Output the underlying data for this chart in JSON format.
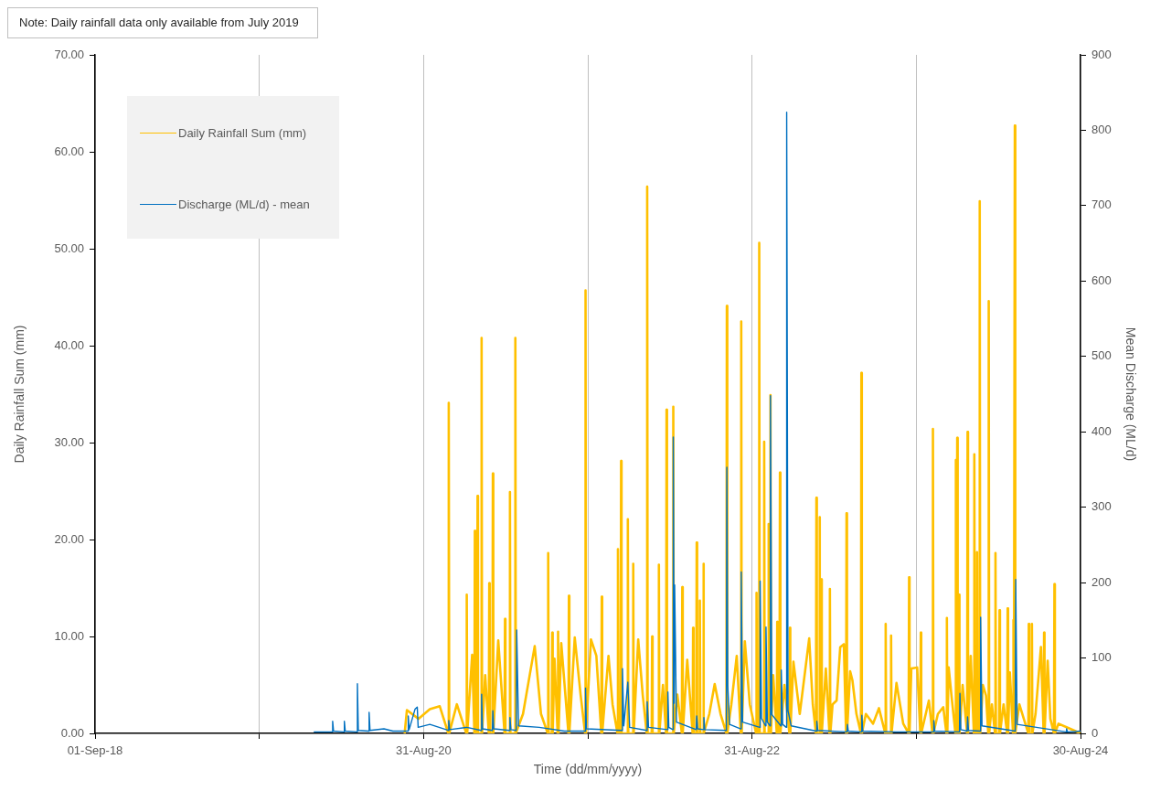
{
  "chart_data": {
    "type": "line",
    "xlabel": "Time (dd/mm/yyyy)",
    "ylabel": "Daily Rainfall Sum (mm)",
    "y2label": "Mean Discharge (ML/d)",
    "annotations": [
      "Note: Daily rainfall data only available from July 2019"
    ],
    "xlim": [
      "2018-09-01",
      "2024-08-30"
    ],
    "xticks": [
      {
        "value": "2018-09-01",
        "label": "01-Sep-18"
      },
      {
        "value": "2019-08-31",
        "label": null
      },
      {
        "value": "2020-08-31",
        "label": "31-Aug-20"
      },
      {
        "value": "2021-08-31",
        "label": null
      },
      {
        "value": "2022-08-31",
        "label": "31-Aug-22"
      },
      {
        "value": "2023-08-31",
        "label": null
      },
      {
        "value": "2024-08-30",
        "label": "30-Aug-24"
      }
    ],
    "ylim": [
      0,
      70
    ],
    "yticks": [
      {
        "value": 0,
        "label": "0.00"
      },
      {
        "value": 10,
        "label": "10.00"
      },
      {
        "value": 20,
        "label": "20.00"
      },
      {
        "value": 30,
        "label": "30.00"
      },
      {
        "value": 40,
        "label": "40.00"
      },
      {
        "value": 50,
        "label": "50.00"
      },
      {
        "value": 60,
        "label": "60.00"
      },
      {
        "value": 70,
        "label": "70.00"
      }
    ],
    "y2lim": [
      0,
      900
    ],
    "y2ticks": [
      0,
      100,
      200,
      300,
      400,
      500,
      600,
      700,
      800,
      900
    ],
    "grid": "x",
    "legend": "top left",
    "marker": "none",
    "series": [
      {
        "name": "Daily Rainfall Sum (mm)",
        "color": "#ffc000",
        "x": [
          "2020-07-20",
          "2020-07-25",
          "2020-08-20",
          "2020-09-14",
          "2020-10-06",
          "2020-10-25",
          "2020-10-26",
          "2020-10-27",
          "2020-11-13",
          "2020-12-04",
          "2020-12-05",
          "2020-12-06",
          "2020-12-17",
          "2020-12-22",
          "2020-12-23",
          "2020-12-24",
          "2020-12-28",
          "2020-12-29",
          "2020-12-30",
          "2021-01-06",
          "2021-01-07",
          "2021-01-08",
          "2021-01-15",
          "2021-01-23",
          "2021-01-24",
          "2021-01-25",
          "2021-01-31",
          "2021-02-01",
          "2021-02-02",
          "2021-02-13",
          "2021-02-27",
          "2021-02-28",
          "2021-03-01",
          "2021-03-10",
          "2021-03-11",
          "2021-03-12",
          "2021-03-22",
          "2021-03-23",
          "2021-03-24",
          "2021-04-09",
          "2021-05-05",
          "2021-05-19",
          "2021-06-03",
          "2021-06-04",
          "2021-06-05",
          "2021-06-12",
          "2021-06-13",
          "2021-06-14",
          "2021-06-18",
          "2021-06-25",
          "2021-06-26",
          "2021-06-27",
          "2021-07-03",
          "2021-07-19",
          "2021-07-20",
          "2021-07-21",
          "2021-08-02",
          "2021-08-15",
          "2021-08-25",
          "2021-08-26",
          "2021-08-27",
          "2021-09-07",
          "2021-09-19",
          "2021-09-30",
          "2021-10-01",
          "2021-10-02",
          "2021-10-16",
          "2021-10-25",
          "2021-11-05",
          "2021-11-06",
          "2021-11-07",
          "2021-11-12",
          "2021-11-13",
          "2021-11-14",
          "2021-11-27",
          "2021-11-28",
          "2021-11-29",
          "2021-12-09",
          "2021-12-10",
          "2021-12-11",
          "2021-12-21",
          "2021-12-31",
          "2022-01-09",
          "2022-01-10",
          "2022-01-11",
          "2022-01-20",
          "2022-01-21",
          "2022-01-22",
          "2022-02-04",
          "2022-02-05",
          "2022-02-06",
          "2022-02-14",
          "2022-02-21",
          "2022-02-22",
          "2022-02-23",
          "2022-03-08",
          "2022-03-09",
          "2022-03-10",
          "2022-03-18",
          "2022-03-28",
          "2022-03-29",
          "2022-03-30",
          "2022-04-09",
          "2022-04-21",
          "2022-04-22",
          "2022-04-23",
          "2022-04-29",
          "2022-04-30",
          "2022-05-01",
          "2022-05-06",
          "2022-05-07",
          "2022-05-08",
          "2022-05-14",
          "2022-05-15",
          "2022-05-16",
          "2022-05-28",
          "2022-06-09",
          "2022-06-22",
          "2022-07-05",
          "2022-07-06",
          "2022-07-07",
          "2022-07-16",
          "2022-07-28",
          "2022-08-06",
          "2022-08-07",
          "2022-08-08",
          "2022-08-15",
          "2022-08-26",
          "2022-09-09",
          "2022-09-10",
          "2022-09-11",
          "2022-09-15",
          "2022-09-16",
          "2022-09-17",
          "2022-09-26",
          "2022-09-27",
          "2022-09-28",
          "2022-10-06",
          "2022-10-07",
          "2022-10-08",
          "2022-10-10",
          "2022-10-11",
          "2022-10-12",
          "2022-10-17",
          "2022-10-25",
          "2022-10-26",
          "2022-10-27",
          "2022-10-31",
          "2022-11-01",
          "2022-11-02",
          "2022-11-11",
          "2022-11-22",
          "2022-11-23",
          "2022-11-24",
          "2022-12-01",
          "2022-12-15",
          "2023-01-05",
          "2023-01-13",
          "2023-01-20",
          "2023-01-21",
          "2023-01-22",
          "2023-01-27",
          "2023-01-28",
          "2023-01-29",
          "2023-01-31",
          "2023-02-01",
          "2023-02-02",
          "2023-02-11",
          "2023-02-19",
          "2023-02-20",
          "2023-02-21",
          "2023-02-26",
          "2023-03-07",
          "2023-03-15",
          "2023-03-23",
          "2023-03-28",
          "2023-03-29",
          "2023-03-30",
          "2023-04-06",
          "2023-04-11",
          "2023-04-20",
          "2023-04-30",
          "2023-05-01",
          "2023-05-02",
          "2023-05-11",
          "2023-05-27",
          "2023-06-09",
          "2023-06-23",
          "2023-06-24",
          "2023-06-25",
          "2023-07-05",
          "2023-07-06",
          "2023-07-07",
          "2023-07-18",
          "2023-08-02",
          "2023-08-14",
          "2023-08-15",
          "2023-08-16",
          "2023-08-20",
          "2023-09-02",
          "2023-09-09",
          "2023-09-10",
          "2023-09-11",
          "2023-09-28",
          "2023-10-06",
          "2023-10-07",
          "2023-10-08",
          "2023-10-18",
          "2023-10-30",
          "2023-11-06",
          "2023-11-07",
          "2023-11-08",
          "2023-11-11",
          "2023-11-17",
          "2023-11-26",
          "2023-11-27",
          "2023-11-28",
          "2023-11-29",
          "2023-11-30",
          "2023-12-01",
          "2023-12-03",
          "2023-12-04",
          "2023-12-05",
          "2023-12-12",
          "2023-12-22",
          "2023-12-23",
          "2023-12-24",
          "2023-12-30",
          "2024-01-06",
          "2024-01-07",
          "2024-01-08",
          "2024-01-12",
          "2024-01-13",
          "2024-01-14",
          "2024-01-18",
          "2024-01-19",
          "2024-01-20",
          "2024-01-26",
          "2024-02-02",
          "2024-02-07",
          "2024-02-08",
          "2024-02-09",
          "2024-02-15",
          "2024-02-22",
          "2024-02-23",
          "2024-02-24",
          "2024-03-02",
          "2024-03-03",
          "2024-03-04",
          "2024-03-12",
          "2024-03-20",
          "2024-03-21",
          "2024-03-22",
          "2024-03-26",
          "2024-04-02",
          "2024-04-03",
          "2024-04-04",
          "2024-04-05",
          "2024-04-06",
          "2024-04-07",
          "2024-04-16",
          "2024-04-26",
          "2024-05-06",
          "2024-05-07",
          "2024-05-08",
          "2024-05-13",
          "2024-05-14",
          "2024-05-15",
          "2024-05-22",
          "2024-06-03",
          "2024-06-09",
          "2024-06-10",
          "2024-06-11",
          "2024-06-18",
          "2024-06-24",
          "2024-07-02",
          "2024-07-03",
          "2024-07-04",
          "2024-07-12",
          "2024-08-06",
          "2024-08-30"
        ],
        "values": [
          0,
          2.4,
          1.5,
          2.5,
          2.8,
          0,
          34.1,
          0,
          3.0,
          0,
          14.3,
          0,
          8.1,
          0,
          20.9,
          0,
          0,
          24.5,
          0,
          0,
          40.8,
          0,
          6,
          0,
          15.5,
          0,
          0,
          26.8,
          0,
          9.6,
          0,
          11.8,
          0,
          0,
          24.9,
          0,
          0,
          40.8,
          0,
          2,
          9.0,
          2,
          0,
          18.6,
          0,
          0,
          10.4,
          0,
          7.7,
          0,
          10.5,
          0,
          9.3,
          0,
          14.2,
          0,
          9.9,
          4,
          0,
          45.7,
          0,
          9.7,
          8.0,
          0,
          14.1,
          0,
          8.0,
          3,
          0,
          19.0,
          0,
          0,
          28.1,
          0,
          0,
          22.1,
          0,
          0,
          17.5,
          0,
          9.7,
          4,
          0,
          56.4,
          0,
          0,
          10.0,
          0,
          0,
          17.4,
          0,
          5,
          0,
          33.4,
          0,
          0,
          33.7,
          0,
          4,
          0,
          15.1,
          0,
          7.6,
          0,
          10.9,
          0,
          0,
          19.7,
          0,
          0,
          13.7,
          0,
          0,
          17.5,
          0,
          2,
          5.1,
          2,
          0,
          44.1,
          0,
          3,
          8.0,
          0,
          42.5,
          0,
          9.5,
          3,
          0,
          14.5,
          0,
          0,
          50.6,
          0,
          0,
          30.1,
          0,
          0,
          21.6,
          0,
          0,
          34.9,
          0,
          6,
          0,
          11.5,
          0,
          0,
          26.9,
          0,
          5,
          0,
          10.9,
          0,
          7.4,
          2,
          9.8,
          3,
          0,
          24.3,
          0,
          0,
          22.3,
          0,
          0,
          15.9,
          0,
          6.7,
          0,
          14.9,
          0,
          3,
          3.4,
          8.9,
          9.2,
          0,
          22.7,
          0,
          6.4,
          5.5,
          2,
          0,
          37.2,
          0,
          2,
          1,
          2.6,
          0,
          11.3,
          0,
          0,
          10.1,
          0,
          5.2,
          1,
          0,
          16.1,
          0,
          6.7,
          6.8,
          0,
          10.4,
          0,
          3.4,
          0,
          31.4,
          0,
          2,
          2.7,
          0,
          11.9,
          0,
          6.8,
          4,
          0,
          28.2,
          0,
          0,
          30.5,
          0,
          0,
          14.3,
          0,
          5,
          0,
          31.1,
          0,
          8,
          0,
          28.8,
          0,
          0,
          18.7,
          0,
          0,
          54.9,
          0,
          5,
          3.9,
          0,
          44.6,
          0,
          3,
          0,
          18.6,
          0,
          0,
          12.7,
          0,
          3,
          0,
          12.9,
          0,
          6.3,
          0,
          11.7,
          0,
          0,
          62.7,
          0,
          3,
          1.5,
          0,
          11.3,
          0,
          0,
          11.3,
          0,
          2,
          8.9,
          0,
          10.4,
          0,
          7.5,
          1.5,
          0,
          15.4,
          0,
          1,
          0.5,
          0
        ]
      },
      {
        "name": "Discharge (ML/d) - mean",
        "color": "#0070c0",
        "axis": "y2",
        "x": [
          "2019-12-31",
          "2020-02-10",
          "2020-02-11",
          "2020-02-13",
          "2020-03-07",
          "2020-03-08",
          "2020-03-10",
          "2020-04-05",
          "2020-04-06",
          "2020-04-08",
          "2020-05-01",
          "2020-05-02",
          "2020-05-04",
          "2020-06-04",
          "2020-06-24",
          "2020-07-27",
          "2020-07-28",
          "2020-07-30",
          "2020-08-12",
          "2020-08-17",
          "2020-08-19",
          "2020-09-14",
          "2020-10-25",
          "2020-10-26",
          "2020-10-28",
          "2020-12-05",
          "2021-01-06",
          "2021-01-07",
          "2021-01-09",
          "2021-01-31",
          "2021-02-01",
          "2021-02-03",
          "2021-03-10",
          "2021-03-11",
          "2021-03-13",
          "2021-03-25",
          "2021-03-26",
          "2021-03-30",
          "2021-05-15",
          "2021-07-10",
          "2021-08-25",
          "2021-08-26",
          "2021-08-28",
          "2021-11-15",
          "2021-11-16",
          "2021-11-19",
          "2021-11-28",
          "2021-12-02",
          "2022-01-09",
          "2022-01-10",
          "2022-01-13",
          "2022-02-24",
          "2022-02-25",
          "2022-02-27",
          "2022-03-08",
          "2022-03-09",
          "2022-03-11",
          "2022-03-12",
          "2022-03-16",
          "2022-04-29",
          "2022-04-30",
          "2022-05-02",
          "2022-05-15",
          "2022-05-16",
          "2022-05-18",
          "2022-07-05",
          "2022-07-06",
          "2022-07-08",
          "2022-07-12",
          "2022-08-06",
          "2022-08-07",
          "2022-08-10",
          "2022-09-17",
          "2022-09-18",
          "2022-09-21",
          "2022-09-30",
          "2022-10-01",
          "2022-10-04",
          "2022-10-10",
          "2022-10-11",
          "2022-10-14",
          "2022-11-03",
          "2022-11-04",
          "2022-11-07",
          "2022-11-15",
          "2022-11-16",
          "2022-11-19",
          "2022-11-26",
          "2023-01-21",
          "2023-01-22",
          "2023-01-24",
          "2023-03-30",
          "2023-03-31",
          "2023-04-02",
          "2023-05-01",
          "2023-05-02",
          "2023-05-04",
          "2023-07-15",
          "2023-10-08",
          "2023-10-09",
          "2023-10-11",
          "2023-12-05",
          "2023-12-06",
          "2023-12-08",
          "2023-12-22",
          "2023-12-23",
          "2023-12-25",
          "2024-01-20",
          "2024-01-21",
          "2024-01-24",
          "2024-04-07",
          "2024-04-08",
          "2024-04-11",
          "2024-07-29",
          "2024-07-30",
          "2024-08-01",
          "2024-08-30"
        ],
        "values": [
          2,
          2,
          16,
          3,
          2,
          16,
          3,
          2,
          66,
          4,
          3,
          28,
          4,
          6,
          3,
          3,
          23,
          5,
          32,
          35,
          8,
          12,
          4,
          17,
          5,
          8,
          4,
          52,
          6,
          4,
          30,
          6,
          4,
          21,
          5,
          4,
          137,
          10,
          8,
          3,
          3,
          60,
          6,
          4,
          86,
          10,
          68,
          8,
          4,
          42,
          8,
          5,
          55,
          8,
          5,
          393,
          40,
          197,
          15,
          5,
          23,
          6,
          5,
          21,
          5,
          4,
          353,
          64,
          12,
          6,
          214,
          15,
          8,
          202,
          20,
          10,
          141,
          15,
          10,
          448,
          25,
          10,
          84,
          12,
          8,
          824,
          30,
          10,
          3,
          16,
          4,
          2,
          12,
          3,
          2,
          24,
          3,
          2,
          2,
          17,
          3,
          2,
          53,
          5,
          3,
          22,
          4,
          3,
          154,
          10,
          3,
          204,
          12,
          2,
          6,
          2,
          3
        ]
      }
    ]
  }
}
